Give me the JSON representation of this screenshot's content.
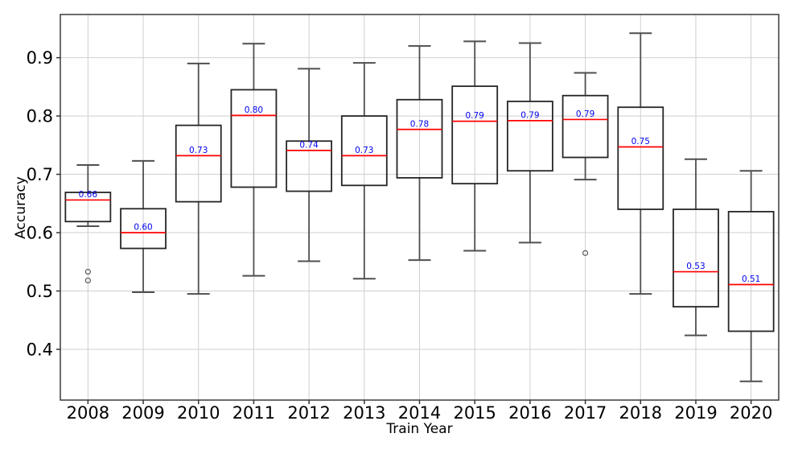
{
  "chart_data": {
    "type": "boxplot",
    "title": "",
    "xlabel": "Train Year",
    "ylabel": "Accuracy",
    "categories": [
      "2008",
      "2009",
      "2010",
      "2011",
      "2012",
      "2013",
      "2014",
      "2015",
      "2016",
      "2017",
      "2018",
      "2019",
      "2020"
    ],
    "yticks": [
      0.4,
      0.5,
      0.6,
      0.7,
      0.8,
      0.9
    ],
    "ytick_labels": [
      "0.4",
      "0.5",
      "0.6",
      "0.7",
      "0.8",
      "0.9"
    ],
    "ylim": [
      0.313,
      0.974
    ],
    "grid": true,
    "legend": "none",
    "colors": {
      "median": "#ff0000",
      "median_label": "#0000ee",
      "box_edge": "#262626",
      "whisker": "#4f4f4f",
      "grid": "#cfcfcf",
      "spine": "#3a3a3a",
      "tick": "#333333",
      "outlier": "#5a5a5a",
      "text": "#000000",
      "background": "#ffffff"
    },
    "series": [
      {
        "category": "2008",
        "whisker_low": 0.611,
        "q1": 0.619,
        "median": 0.656,
        "q3": 0.669,
        "whisker_high": 0.716,
        "median_label": "0.66",
        "outliers": [
          0.533,
          0.518
        ]
      },
      {
        "category": "2009",
        "whisker_low": 0.498,
        "q1": 0.573,
        "median": 0.6,
        "q3": 0.641,
        "whisker_high": 0.723,
        "median_label": "0.60",
        "outliers": []
      },
      {
        "category": "2010",
        "whisker_low": 0.495,
        "q1": 0.653,
        "median": 0.732,
        "q3": 0.784,
        "whisker_high": 0.89,
        "median_label": "0.73",
        "outliers": []
      },
      {
        "category": "2011",
        "whisker_low": 0.526,
        "q1": 0.678,
        "median": 0.801,
        "q3": 0.845,
        "whisker_high": 0.924,
        "median_label": "0.80",
        "outliers": []
      },
      {
        "category": "2012",
        "whisker_low": 0.551,
        "q1": 0.671,
        "median": 0.741,
        "q3": 0.757,
        "whisker_high": 0.881,
        "median_label": "0.74",
        "outliers": []
      },
      {
        "category": "2013",
        "whisker_low": 0.521,
        "q1": 0.681,
        "median": 0.732,
        "q3": 0.8,
        "whisker_high": 0.891,
        "median_label": "0.73",
        "outliers": []
      },
      {
        "category": "2014",
        "whisker_low": 0.553,
        "q1": 0.694,
        "median": 0.777,
        "q3": 0.828,
        "whisker_high": 0.92,
        "median_label": "0.78",
        "outliers": []
      },
      {
        "category": "2015",
        "whisker_low": 0.569,
        "q1": 0.684,
        "median": 0.791,
        "q3": 0.851,
        "whisker_high": 0.928,
        "median_label": "0.79",
        "outliers": []
      },
      {
        "category": "2016",
        "whisker_low": 0.583,
        "q1": 0.706,
        "median": 0.792,
        "q3": 0.825,
        "whisker_high": 0.925,
        "median_label": "0.79",
        "outliers": []
      },
      {
        "category": "2017",
        "whisker_low": 0.691,
        "q1": 0.729,
        "median": 0.794,
        "q3": 0.835,
        "whisker_high": 0.874,
        "median_label": "0.79",
        "outliers": [
          0.565
        ]
      },
      {
        "category": "2018",
        "whisker_low": 0.495,
        "q1": 0.64,
        "median": 0.747,
        "q3": 0.815,
        "whisker_high": 0.942,
        "median_label": "0.75",
        "outliers": []
      },
      {
        "category": "2019",
        "whisker_low": 0.424,
        "q1": 0.473,
        "median": 0.533,
        "q3": 0.64,
        "whisker_high": 0.726,
        "median_label": "0.53",
        "outliers": []
      },
      {
        "category": "2020",
        "whisker_low": 0.345,
        "q1": 0.431,
        "median": 0.511,
        "q3": 0.636,
        "whisker_high": 0.706,
        "median_label": "0.51",
        "outliers": []
      }
    ]
  }
}
